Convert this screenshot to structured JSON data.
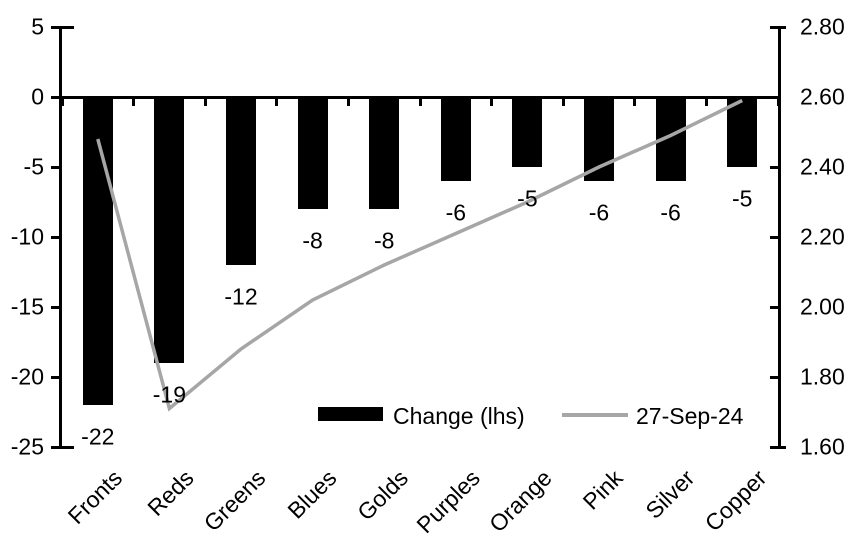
{
  "chart_data": {
    "type": "combo-bar-line",
    "title": "",
    "categories": [
      "Fronts",
      "Reds",
      "Greens",
      "Blues",
      "Golds",
      "Purples",
      "Orange",
      "Pink",
      "Silver",
      "Copper"
    ],
    "series": [
      {
        "name": "Change (lhs)",
        "type": "bar",
        "axis": "left",
        "color": "#000000",
        "values": [
          -22,
          -19,
          -12,
          -8,
          -8,
          -6,
          -5,
          -6,
          -6,
          -5
        ],
        "data_labels": [
          "-22",
          "-19",
          "-12",
          "-8",
          "-8",
          "-6",
          "-5",
          "-6",
          "-6",
          "-5"
        ]
      },
      {
        "name": "27-Sep-24",
        "type": "line",
        "axis": "right",
        "color": "#a6a6a6",
        "values": [
          2.48,
          1.71,
          1.88,
          2.02,
          2.12,
          2.21,
          2.3,
          2.4,
          2.49,
          2.59
        ]
      }
    ],
    "left_axis": {
      "min": -25,
      "max": 5,
      "tick_labels": [
        "5",
        "0",
        "-5",
        "-10",
        "-15",
        "-20",
        "-25"
      ],
      "tick_values": [
        5,
        0,
        -5,
        -10,
        -15,
        -20,
        -25
      ]
    },
    "right_axis": {
      "min": 1.6,
      "max": 2.8,
      "tick_labels": [
        "2.80",
        "2.60",
        "2.40",
        "2.20",
        "2.00",
        "1.80",
        "1.60"
      ],
      "tick_values": [
        2.8,
        2.6,
        2.4,
        2.2,
        2.0,
        1.8,
        1.6
      ]
    },
    "legend": {
      "position": "bottom-inside",
      "entries": [
        {
          "label": "Change (lhs)",
          "swatch": "bar",
          "color": "#000000"
        },
        {
          "label": "27-Sep-24",
          "swatch": "line",
          "color": "#a6a6a6"
        }
      ]
    },
    "grid": "off",
    "background": "#ffffff"
  }
}
